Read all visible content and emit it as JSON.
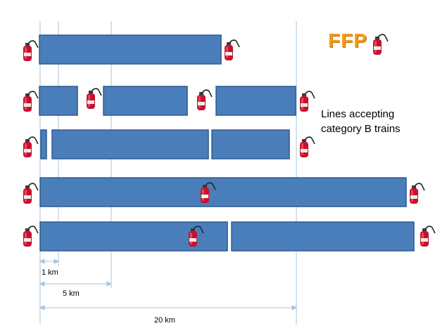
{
  "title": "FFP",
  "annotation": {
    "line1": "Lines accepting",
    "line2": "category B trains"
  },
  "scale": {
    "s1": "1 km",
    "s5": "5 km",
    "s20": "20 km"
  },
  "colors": {
    "segment_fill": "#4a7ebb",
    "segment_border": "#2e5a8e",
    "title": "#f39a1e",
    "extinguisher": "#c8102e",
    "guide_line": "#a7c4e0"
  },
  "icon": "fire-extinguisher-icon"
}
